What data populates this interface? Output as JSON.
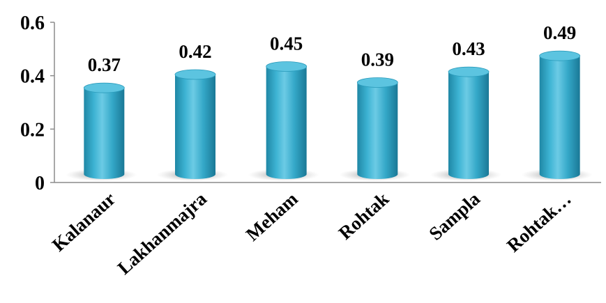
{
  "chart_data": {
    "type": "bar",
    "style": "3d-cylinder",
    "title": "",
    "xlabel": "",
    "ylabel": "",
    "categories": [
      "Kalanaur",
      "Lakhanmajra",
      "Meham",
      "Rohtak",
      "Sampla",
      "Rohtak…"
    ],
    "values": [
      0.37,
      0.42,
      0.45,
      0.39,
      0.43,
      0.49
    ],
    "value_labels": [
      "0.37",
      "0.42",
      "0.45",
      "0.39",
      "0.43",
      "0.49"
    ],
    "ylim": [
      0,
      0.6
    ],
    "yticks": [
      0,
      0.2,
      0.4,
      0.6
    ],
    "ytick_labels": [
      "0",
      "0.2",
      "0.4",
      "0.6"
    ],
    "grid": false,
    "legend": "none",
    "colors": {
      "bar": "#35a9c9",
      "bar_light": "#7fd3ea",
      "bar_dark": "#1d7f9c",
      "bar_top": "#5cc4e0",
      "axis": "#8c8c8c",
      "shadow": "#9a9a9a"
    }
  }
}
